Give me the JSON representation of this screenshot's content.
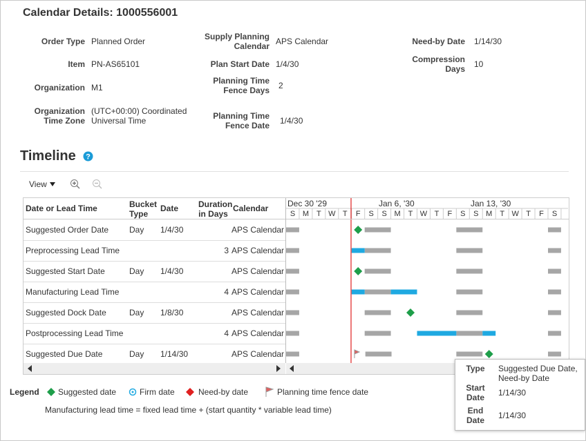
{
  "header": {
    "title": "Calendar Details: 1000556001"
  },
  "details": [
    {
      "label": "Order Type",
      "value": "Planned Order"
    },
    {
      "label": "Item",
      "value": "PN-AS65101"
    },
    {
      "label": "Organization",
      "value": "M1"
    },
    {
      "label": "Organization Time Zone",
      "value": "(UTC+00:00) Coordinated Universal Time"
    },
    {
      "label": "Supply Planning Calendar",
      "value": "APS Calendar"
    },
    {
      "label": "Plan Start Date",
      "value": "1/4/30"
    },
    {
      "label": "Planning Time Fence Days",
      "value": "2"
    },
    {
      "label": "Planning Time Fence Date",
      "value": "1/4/30"
    },
    {
      "label": "Need-by Date",
      "value": "1/14/30"
    },
    {
      "label": "Compression Days",
      "value": "10"
    }
  ],
  "timeline": {
    "title": "Timeline",
    "view": "View",
    "columns": [
      "Date or Lead Time",
      "Bucket Type",
      "Date",
      "Duration in Days",
      "Calendar"
    ],
    "weeks": [
      "Dec 30 '29",
      "Jan 6, '30",
      "Jan 13, '30"
    ],
    "days": [
      "S",
      "M",
      "T",
      "W",
      "T",
      "F",
      "S",
      "S",
      "M",
      "T",
      "W",
      "T",
      "F",
      "S",
      "S",
      "M",
      "T",
      "W",
      "T",
      "F",
      "S"
    ],
    "rows": [
      [
        "Suggested Order Date",
        "Day",
        "1/4/30",
        null,
        "APS Calendar"
      ],
      [
        "Preprocessing Lead Time",
        null,
        null,
        "3",
        "APS Calendar"
      ],
      [
        "Suggested Start Date",
        "Day",
        "1/4/30",
        null,
        "APS Calendar"
      ],
      [
        "Manufacturing Lead Time",
        null,
        null,
        "4",
        "APS Calendar"
      ],
      [
        "Suggested Dock Date",
        "Day",
        "1/8/30",
        null,
        "APS Calendar"
      ],
      [
        "Postprocessing Lead Time",
        null,
        null,
        "4",
        "APS Calendar"
      ],
      [
        "Suggested Due Date",
        "Day",
        "1/14/30",
        null,
        "APS Calendar"
      ]
    ]
  },
  "legend": {
    "title": "Legend",
    "items": [
      "Suggested date",
      "Firm date",
      "Need-by date",
      "Planning time fence date"
    ]
  },
  "note": "Manufacturing lead time = fixed lead time + (start quantity * variable lead time)",
  "tooltip": [
    {
      "label": "Type",
      "value": "Suggested Due Date, Need-by Date"
    },
    {
      "label": "Start Date",
      "value": "1/14/30"
    },
    {
      "label": "End Date",
      "value": "1/14/30"
    }
  ]
}
